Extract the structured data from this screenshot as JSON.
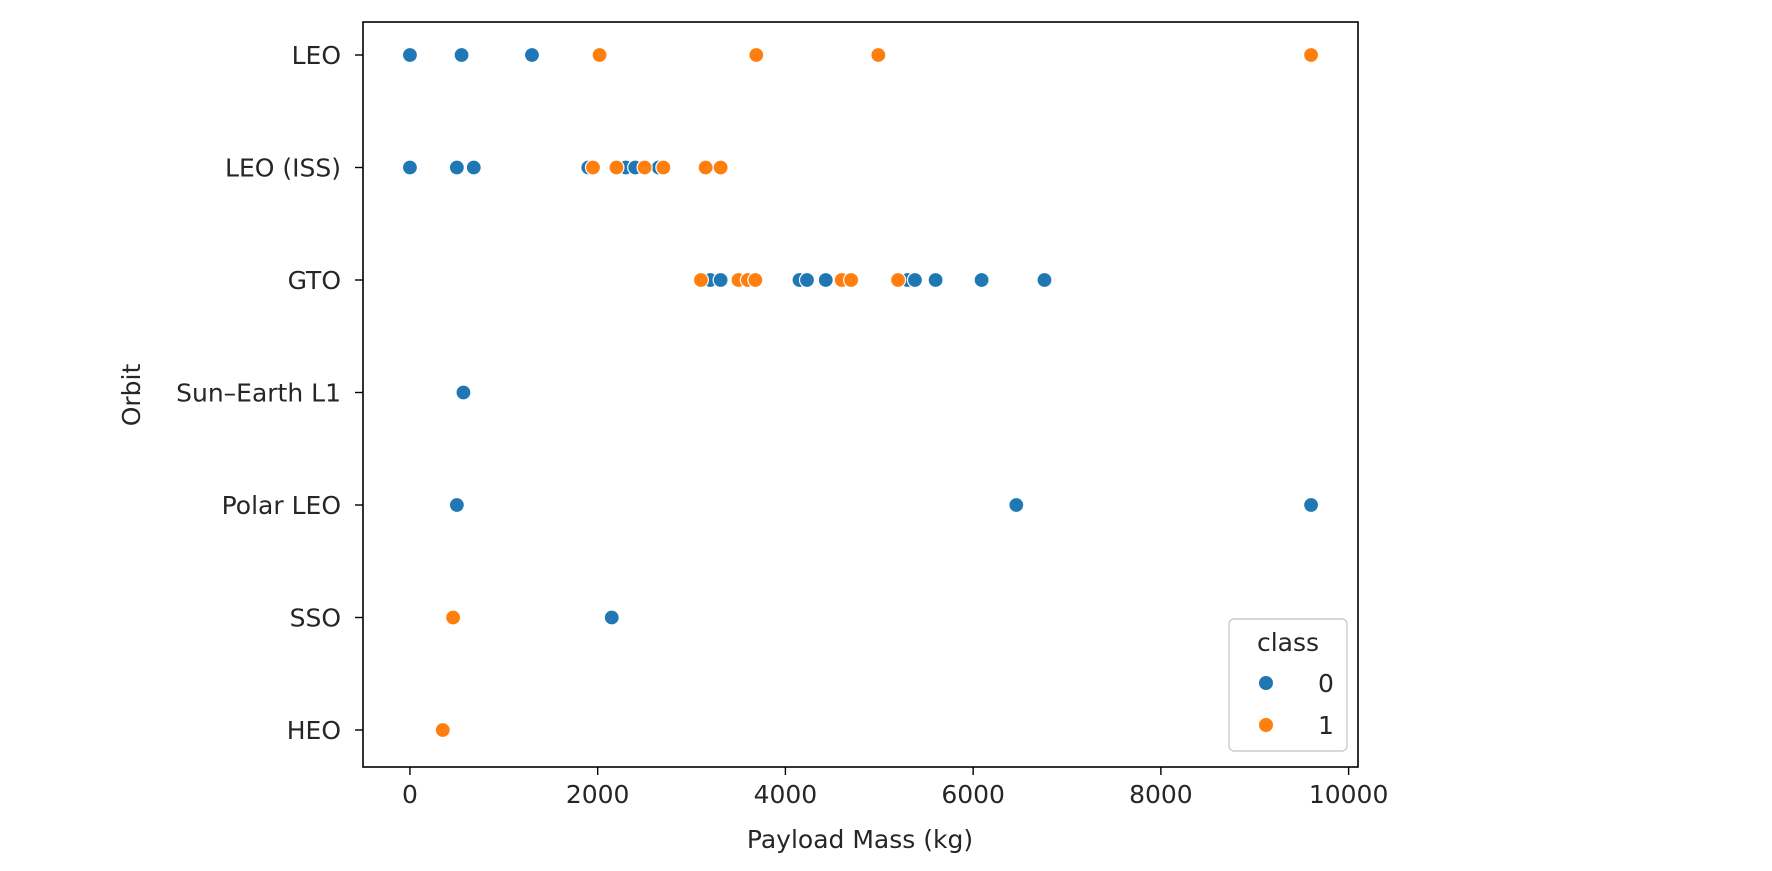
{
  "chart_data": {
    "type": "scatter",
    "xlabel": "Payload Mass (kg)",
    "ylabel": "Orbit",
    "xlim": [
      -500,
      10100
    ],
    "x_ticks": [
      0,
      2000,
      4000,
      6000,
      8000,
      10000
    ],
    "categories": [
      "LEO",
      "LEO (ISS)",
      "GTO",
      "Sun–Earth L1",
      "Polar LEO",
      "SSO",
      "HEO"
    ],
    "legend": {
      "title": "class",
      "placement": "lower-right",
      "entries": [
        {
          "label": "0",
          "color": "#1f77b4"
        },
        {
          "label": "1",
          "color": "#ff7f0e"
        }
      ]
    },
    "grid": false,
    "series": [
      {
        "class_label": "0",
        "color": "#1f77b4",
        "points": [
          {
            "x": 0,
            "y": "LEO"
          },
          {
            "x": 550,
            "y": "LEO"
          },
          {
            "x": 1300,
            "y": "LEO"
          },
          {
            "x": 0,
            "y": "LEO (ISS)"
          },
          {
            "x": 500,
            "y": "LEO (ISS)"
          },
          {
            "x": 680,
            "y": "LEO (ISS)"
          },
          {
            "x": 1900,
            "y": "LEO (ISS)"
          },
          {
            "x": 2300,
            "y": "LEO (ISS)"
          },
          {
            "x": 2400,
            "y": "LEO (ISS)"
          },
          {
            "x": 2650,
            "y": "LEO (ISS)"
          },
          {
            "x": 3200,
            "y": "GTO"
          },
          {
            "x": 3310,
            "y": "GTO"
          },
          {
            "x": 4150,
            "y": "GTO"
          },
          {
            "x": 4230,
            "y": "GTO"
          },
          {
            "x": 4430,
            "y": "GTO"
          },
          {
            "x": 4640,
            "y": "GTO"
          },
          {
            "x": 5300,
            "y": "GTO"
          },
          {
            "x": 5380,
            "y": "GTO"
          },
          {
            "x": 5600,
            "y": "GTO"
          },
          {
            "x": 6090,
            "y": "GTO"
          },
          {
            "x": 6760,
            "y": "GTO"
          },
          {
            "x": 570,
            "y": "Sun–Earth L1"
          },
          {
            "x": 500,
            "y": "Polar LEO"
          },
          {
            "x": 6460,
            "y": "Polar LEO"
          },
          {
            "x": 9600,
            "y": "Polar LEO"
          },
          {
            "x": 2150,
            "y": "SSO"
          }
        ]
      },
      {
        "class_label": "1",
        "color": "#ff7f0e",
        "points": [
          {
            "x": 2020,
            "y": "LEO"
          },
          {
            "x": 3690,
            "y": "LEO"
          },
          {
            "x": 4990,
            "y": "LEO"
          },
          {
            "x": 9600,
            "y": "LEO"
          },
          {
            "x": 1950,
            "y": "LEO (ISS)"
          },
          {
            "x": 2200,
            "y": "LEO (ISS)"
          },
          {
            "x": 2500,
            "y": "LEO (ISS)"
          },
          {
            "x": 2700,
            "y": "LEO (ISS)"
          },
          {
            "x": 3150,
            "y": "LEO (ISS)"
          },
          {
            "x": 3310,
            "y": "LEO (ISS)"
          },
          {
            "x": 3100,
            "y": "GTO"
          },
          {
            "x": 3500,
            "y": "GTO"
          },
          {
            "x": 3600,
            "y": "GTO"
          },
          {
            "x": 3680,
            "y": "GTO"
          },
          {
            "x": 4600,
            "y": "GTO"
          },
          {
            "x": 4700,
            "y": "GTO"
          },
          {
            "x": 5200,
            "y": "GTO"
          },
          {
            "x": 460,
            "y": "SSO"
          },
          {
            "x": 350,
            "y": "HEO"
          }
        ]
      }
    ]
  }
}
